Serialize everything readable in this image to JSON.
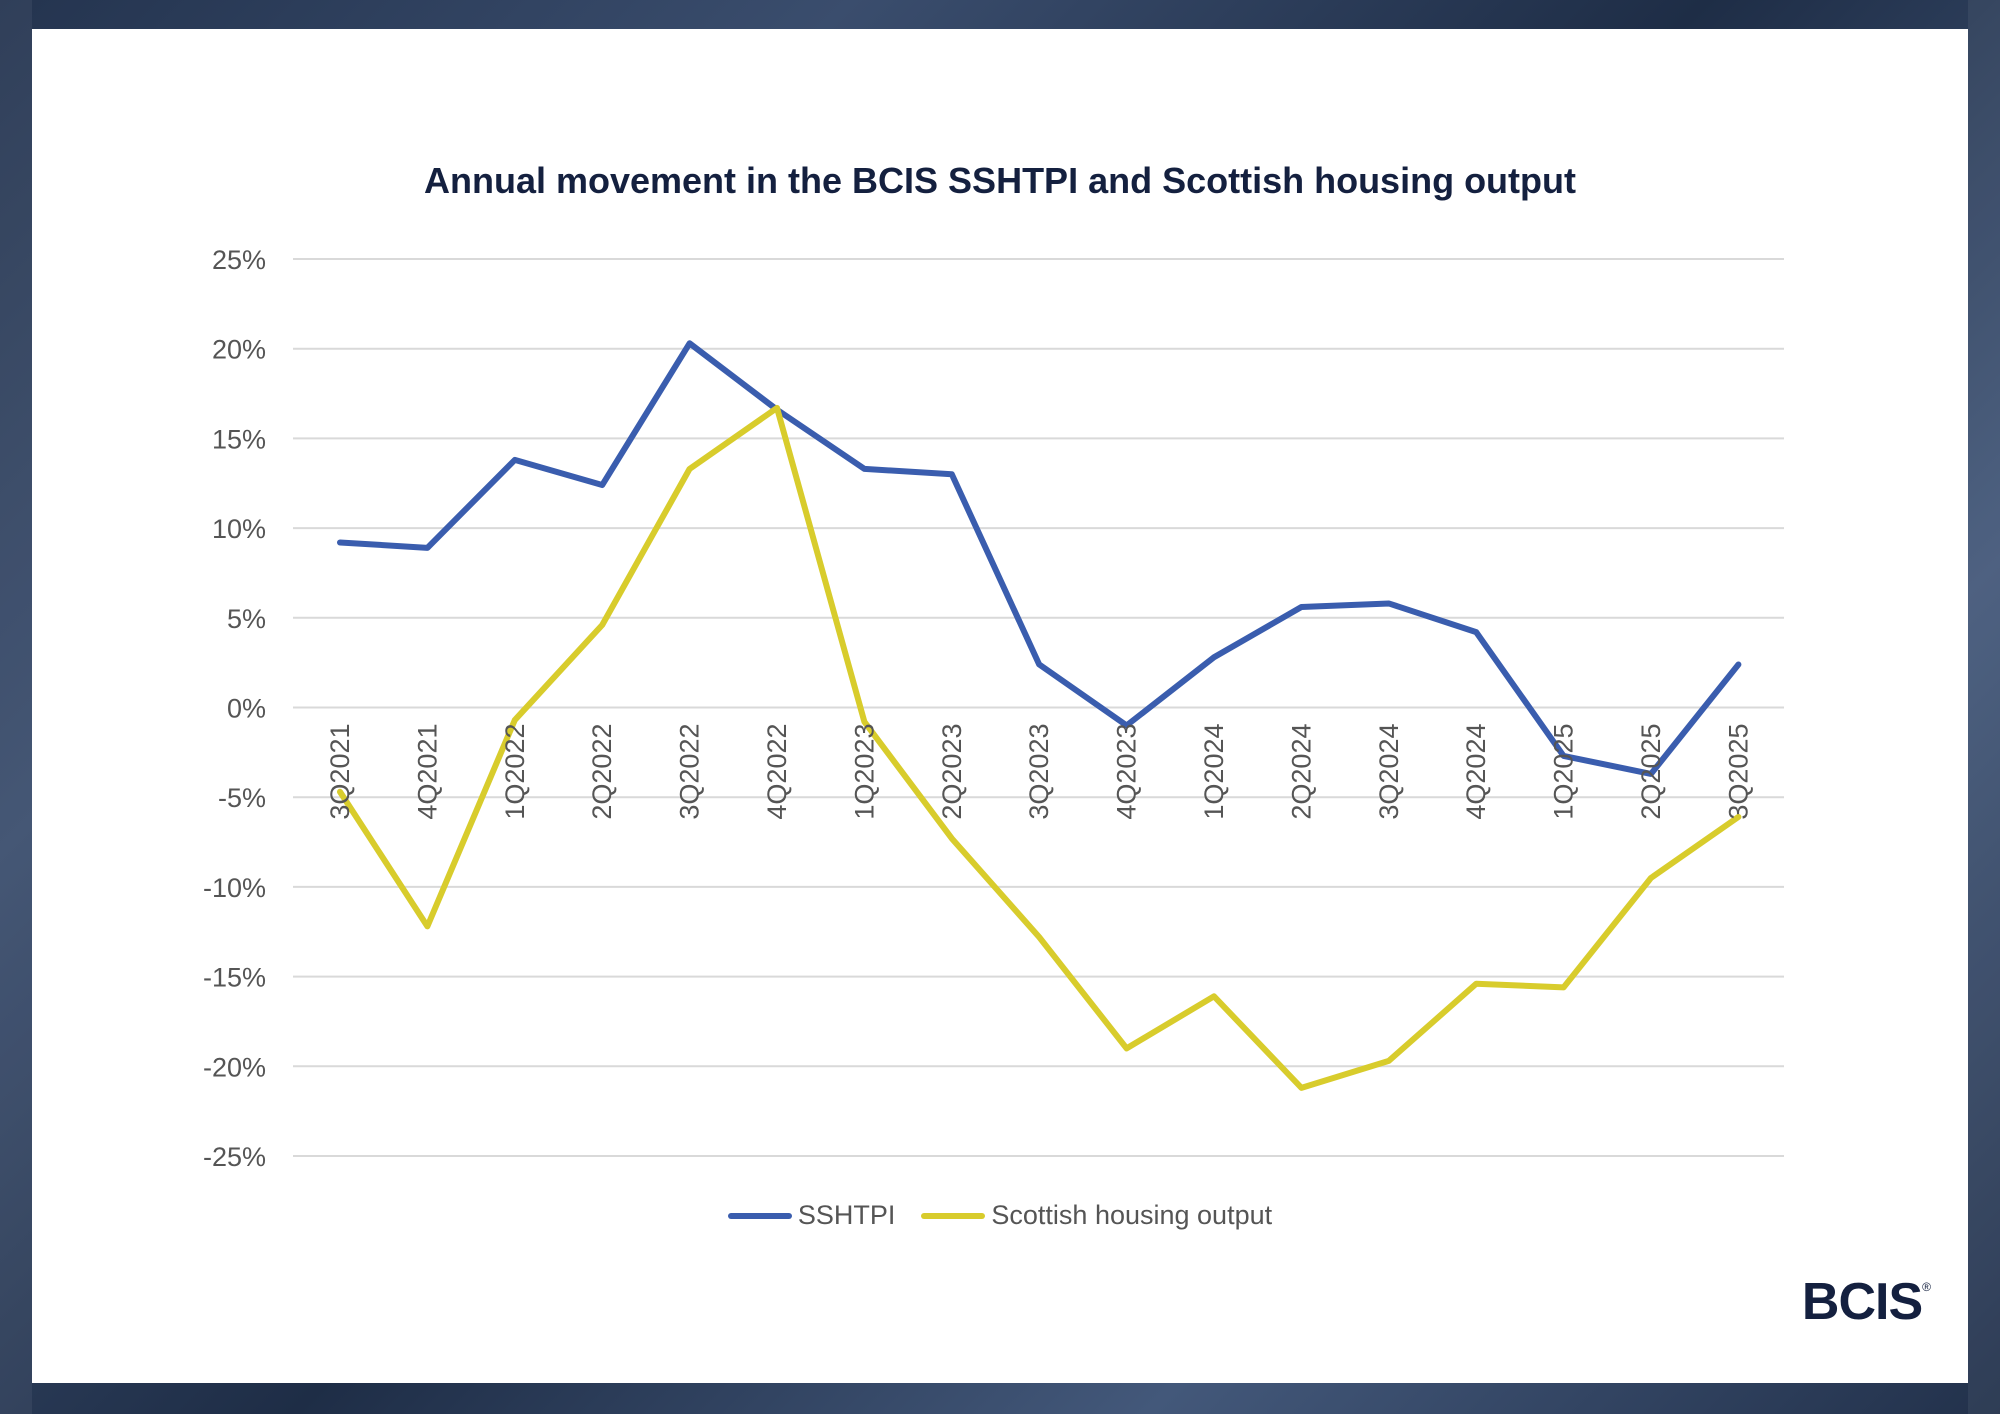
{
  "chart_data": {
    "type": "line",
    "title": "Annual movement in the BCIS SSHTPI and Scottish housing output",
    "categories": [
      "3Q2021",
      "4Q2021",
      "1Q2022",
      "2Q2022",
      "3Q2022",
      "4Q2022",
      "1Q2023",
      "2Q2023",
      "3Q2023",
      "4Q2023",
      "1Q2024",
      "2Q2024",
      "3Q2024",
      "4Q2024",
      "1Q2025",
      "2Q2025",
      "3Q2025"
    ],
    "series": [
      {
        "name": "SSHTPI",
        "color": "#3a5dae",
        "values": [
          9.2,
          8.9,
          13.8,
          12.4,
          20.3,
          16.6,
          13.3,
          13.0,
          2.4,
          -1.0,
          2.8,
          5.6,
          5.8,
          4.2,
          -2.7,
          -3.7,
          2.4
        ]
      },
      {
        "name": "Scottish housing output",
        "color": "#d8cc2c",
        "values": [
          -4.7,
          -12.2,
          -0.7,
          4.6,
          13.3,
          16.7,
          -0.8,
          -7.3,
          -12.8,
          -19.0,
          -16.1,
          -21.2,
          -19.7,
          -15.4,
          -15.6,
          -9.5,
          -6.1
        ]
      }
    ],
    "yticks": [
      "25%",
      "20%",
      "15%",
      "10%",
      "5%",
      "0%",
      "-5%",
      "-10%",
      "-15%",
      "-20%",
      "-25%"
    ],
    "ylim": [
      -25,
      25
    ],
    "grid": true,
    "legend_position": "bottom"
  },
  "legend": {
    "series_1": "SSHTPI",
    "series_2": "Scottish housing output"
  },
  "brand": {
    "logo_text": "BCIS",
    "registered_mark": "®"
  }
}
